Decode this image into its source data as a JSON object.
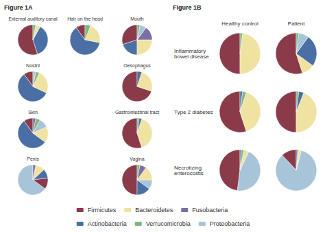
{
  "chart_data": {
    "type": "pie",
    "legend": "bottom",
    "categories": [
      "Firmicutes",
      "Bacteroidetes",
      "Fusobacteria",
      "Actinobacteria",
      "Verrucomicrobia",
      "Proteobacteria"
    ],
    "colors": [
      "#8B3A4A",
      "#F0E2A0",
      "#7B6FA5",
      "#4A6FA5",
      "#7DB87D",
      "#A8C4D8"
    ],
    "panels": [
      {
        "title": "Figure 1A",
        "pies": [
          {
            "title": "External auditory canal",
            "categories": [
              "Firmicutes",
              "Actinobacteria",
              "Bacteroidetes",
              "Verrucomicrobia"
            ],
            "values": [
              0.55,
              0.37,
              0.05,
              0.03
            ]
          },
          {
            "title": "Hair on the head",
            "categories": [
              "Firmicutes",
              "Actinobacteria",
              "Bacteroidetes",
              "Verrucomicrobia"
            ],
            "values": [
              0.1,
              0.62,
              0.22,
              0.06
            ]
          },
          {
            "title": "Mouth",
            "categories": [
              "Firmicutes",
              "Actinobacteria",
              "Bacteroidetes",
              "Fusobacteria",
              "Proteobacteria",
              "Verrucomicrobia"
            ],
            "values": [
              0.3,
              0.2,
              0.25,
              0.15,
              0.07,
              0.03
            ]
          },
          {
            "title": "Nostril",
            "categories": [
              "Firmicutes",
              "Actinobacteria",
              "Bacteroidetes",
              "Verrucomicrobia",
              "Proteobacteria"
            ],
            "values": [
              0.1,
              0.58,
              0.25,
              0.04,
              0.03
            ]
          },
          {
            "title": "Oesophagus",
            "categories": [
              "Firmicutes",
              "Bacteroidetes",
              "Actinobacteria"
            ],
            "values": [
              0.7,
              0.25,
              0.05
            ]
          },
          {
            "title": "Gastrointestinal tract",
            "categories": [
              "Firmicutes",
              "Bacteroidetes",
              "Actinobacteria",
              "Verrucomicrobia"
            ],
            "values": [
              0.55,
              0.4,
              0.03,
              0.02
            ]
          },
          {
            "title": "Skin",
            "categories": [
              "Firmicutes",
              "Actinobacteria",
              "Bacteroidetes",
              "Proteobacteria",
              "Verrucomicrobia",
              "Fusobacteria"
            ],
            "values": [
              0.1,
              0.55,
              0.17,
              0.1,
              0.05,
              0.03
            ]
          },
          {
            "title": "Penis",
            "categories": [
              "Proteobacteria",
              "Firmicutes",
              "Actinobacteria",
              "Bacteroidetes",
              "Fusobacteria"
            ],
            "values": [
              0.65,
              0.12,
              0.1,
              0.1,
              0.03
            ]
          },
          {
            "title": "Vagina",
            "categories": [
              "Firmicutes",
              "Actinobacteria",
              "Proteobacteria",
              "Bacteroidetes",
              "Fusobacteria",
              "Verrucomicrobia"
            ],
            "values": [
              0.5,
              0.15,
              0.1,
              0.15,
              0.07,
              0.03
            ]
          }
        ]
      },
      {
        "title": "Figure 1B",
        "columns": [
          "Healthy control",
          "Patient"
        ],
        "rows": [
          {
            "label": "Inflammatory\nbowel disease",
            "pies": [
              {
                "categories": [
                  "Firmicutes",
                  "Bacteroidetes",
                  "Verrucomicrobia"
                ],
                "values": [
                  0.5,
                  0.48,
                  0.02
                ]
              },
              {
                "categories": [
                  "Firmicutes",
                  "Bacteroidetes",
                  "Actinobacteria",
                  "Proteobacteria",
                  "Verrucomicrobia"
                ],
                "values": [
                  0.55,
                  0.1,
                  0.25,
                  0.08,
                  0.02
                ]
              }
            ]
          },
          {
            "label": "Type 2 diabetes",
            "pies": [
              {
                "categories": [
                  "Firmicutes",
                  "Bacteroidetes",
                  "Verrucomicrobia",
                  "Actinobacteria"
                ],
                "values": [
                  0.55,
                  0.4,
                  0.03,
                  0.02
                ]
              },
              {
                "categories": [
                  "Firmicutes",
                  "Bacteroidetes",
                  "Actinobacteria",
                  "Verrucomicrobia"
                ],
                "values": [
                  0.5,
                  0.44,
                  0.04,
                  0.02
                ]
              }
            ]
          },
          {
            "label": "Necrotizing\nenterocolitis",
            "pies": [
              {
                "categories": [
                  "Firmicutes",
                  "Proteobacteria",
                  "Bacteroidetes",
                  "Verrucomicrobia",
                  "Actinobacteria"
                ],
                "values": [
                  0.48,
                  0.45,
                  0.04,
                  0.02,
                  0.01
                ]
              },
              {
                "categories": [
                  "Firmicutes",
                  "Proteobacteria",
                  "Bacteroidetes",
                  "Verrucomicrobia",
                  "Actinobacteria"
                ],
                "values": [
                  0.12,
                  0.84,
                  0.02,
                  0.01,
                  0.01
                ]
              }
            ]
          }
        ]
      }
    ]
  }
}
